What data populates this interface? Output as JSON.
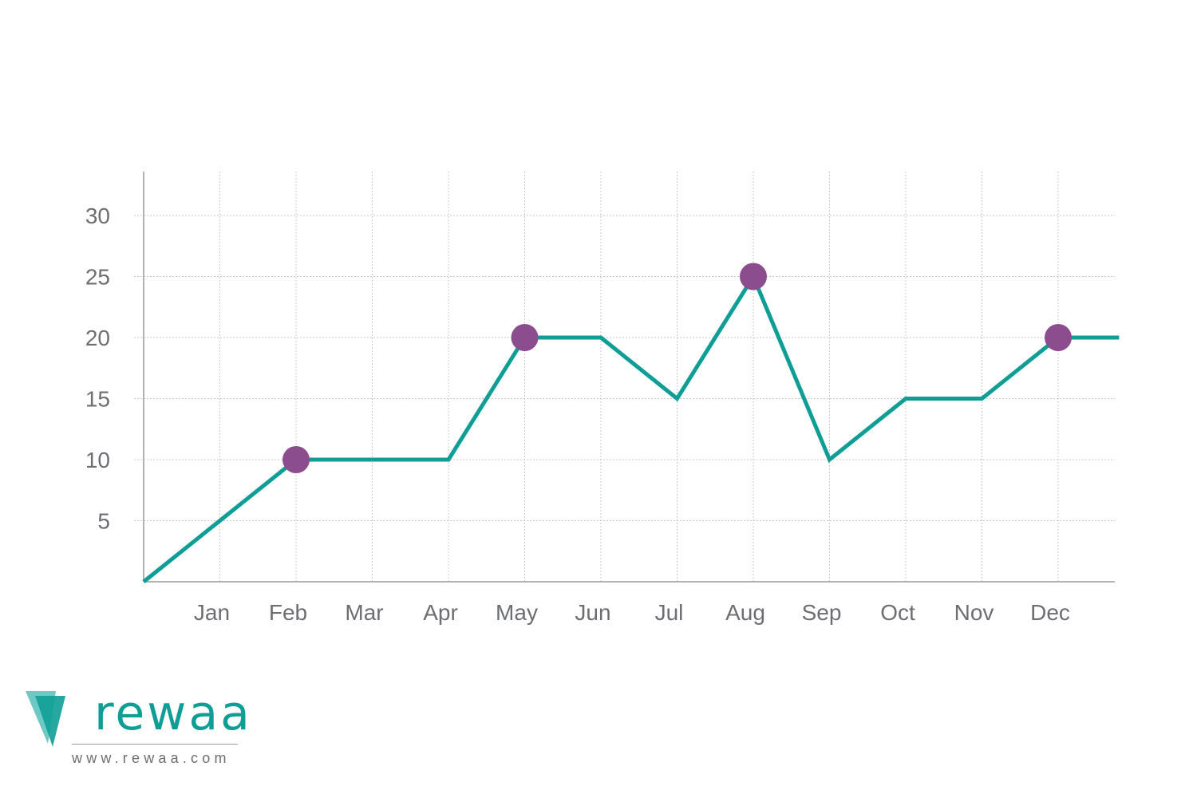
{
  "chart_data": {
    "type": "line",
    "categories": [
      "Jan",
      "Feb",
      "Mar",
      "Apr",
      "May",
      "Jun",
      "Jul",
      "Aug",
      "Sep",
      "Oct",
      "Nov",
      "Dec"
    ],
    "x_start": 0,
    "x_end": 12.8,
    "values_start": 0,
    "values": [
      5,
      10,
      10,
      10,
      20,
      20,
      15,
      25,
      10,
      15,
      15,
      20
    ],
    "values_end": 20,
    "highlighted": [
      "Feb",
      "May",
      "Aug",
      "Dec"
    ],
    "yticks": [
      5,
      10,
      15,
      20,
      25,
      30
    ],
    "ylim": [
      0,
      33.5
    ],
    "xlim": [
      0,
      12.8
    ],
    "title": "",
    "xlabel": "",
    "ylabel": "",
    "grid": true,
    "colors": {
      "line": "#0e9e96",
      "marker": "#8b4d8d"
    }
  },
  "branding": {
    "logo_text": "rewaa",
    "url": "www.rewaa.com",
    "colors": {
      "primary": "#0e9e96",
      "secondary": "#6ec9c5"
    }
  }
}
